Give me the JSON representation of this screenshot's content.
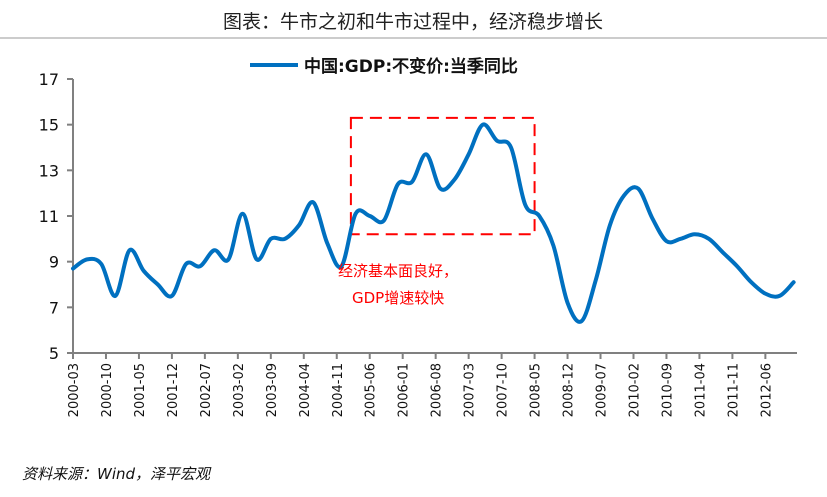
{
  "chart_data": {
    "type": "line",
    "title": "图表：牛市之初和牛市过程中，经济稳步增长",
    "xlabel": "",
    "ylabel": "",
    "ylim": [
      5,
      17
    ],
    "yticks": [
      5,
      7,
      9,
      11,
      13,
      15,
      17
    ],
    "xtick_labels": [
      "2000-03",
      "2000-10",
      "2001-05",
      "2001-12",
      "2002-07",
      "2003-02",
      "2003-09",
      "2004-04",
      "2004-11",
      "2005-06",
      "2006-01",
      "2006-08",
      "2007-03",
      "2007-10",
      "2008-05",
      "2008-12",
      "2009-07",
      "2010-02",
      "2010-09",
      "2011-04",
      "2011-11",
      "2012-06"
    ],
    "legend_position": "top",
    "grid": false,
    "series": [
      {
        "name": "中国:GDP:不变价:当季同比",
        "color": "#0070C0",
        "x": [
          "2000-03",
          "2000-06",
          "2000-09",
          "2000-12",
          "2001-03",
          "2001-06",
          "2001-09",
          "2001-12",
          "2002-03",
          "2002-06",
          "2002-09",
          "2002-12",
          "2003-03",
          "2003-06",
          "2003-09",
          "2003-12",
          "2004-03",
          "2004-06",
          "2004-09",
          "2004-12",
          "2005-03",
          "2005-06",
          "2005-09",
          "2005-12",
          "2006-03",
          "2006-06",
          "2006-09",
          "2006-12",
          "2007-03",
          "2007-06",
          "2007-09",
          "2007-12",
          "2008-03",
          "2008-06",
          "2008-09",
          "2008-12",
          "2009-03",
          "2009-06",
          "2009-09",
          "2009-12",
          "2010-03",
          "2010-06",
          "2010-09",
          "2010-12",
          "2011-03",
          "2011-06",
          "2011-09",
          "2011-12",
          "2012-03",
          "2012-06",
          "2012-09",
          "2012-12"
        ],
        "values": [
          8.7,
          9.1,
          8.9,
          7.5,
          9.5,
          8.6,
          8.0,
          7.5,
          8.9,
          8.8,
          9.5,
          9.1,
          11.1,
          9.1,
          10.0,
          10.0,
          10.6,
          11.6,
          9.8,
          8.8,
          11.1,
          11.0,
          10.8,
          12.4,
          12.5,
          13.7,
          12.2,
          12.6,
          13.7,
          15.0,
          14.3,
          14.0,
          11.5,
          11.0,
          9.7,
          7.2,
          6.4,
          8.2,
          10.6,
          11.9,
          12.2,
          10.9,
          9.9,
          10.0,
          10.2,
          10.0,
          9.4,
          8.8,
          8.1,
          7.6,
          7.5,
          8.1
        ]
      }
    ],
    "annotation": {
      "line1": "经济基本面良好，",
      "line2": "GDP增速较快",
      "box_color": "#FF0000",
      "box_x_range": [
        "2005-02",
        "2008-05"
      ],
      "box_y_range": [
        10.2,
        15.3
      ]
    },
    "source": "资料来源：Wind，泽平宏观"
  }
}
